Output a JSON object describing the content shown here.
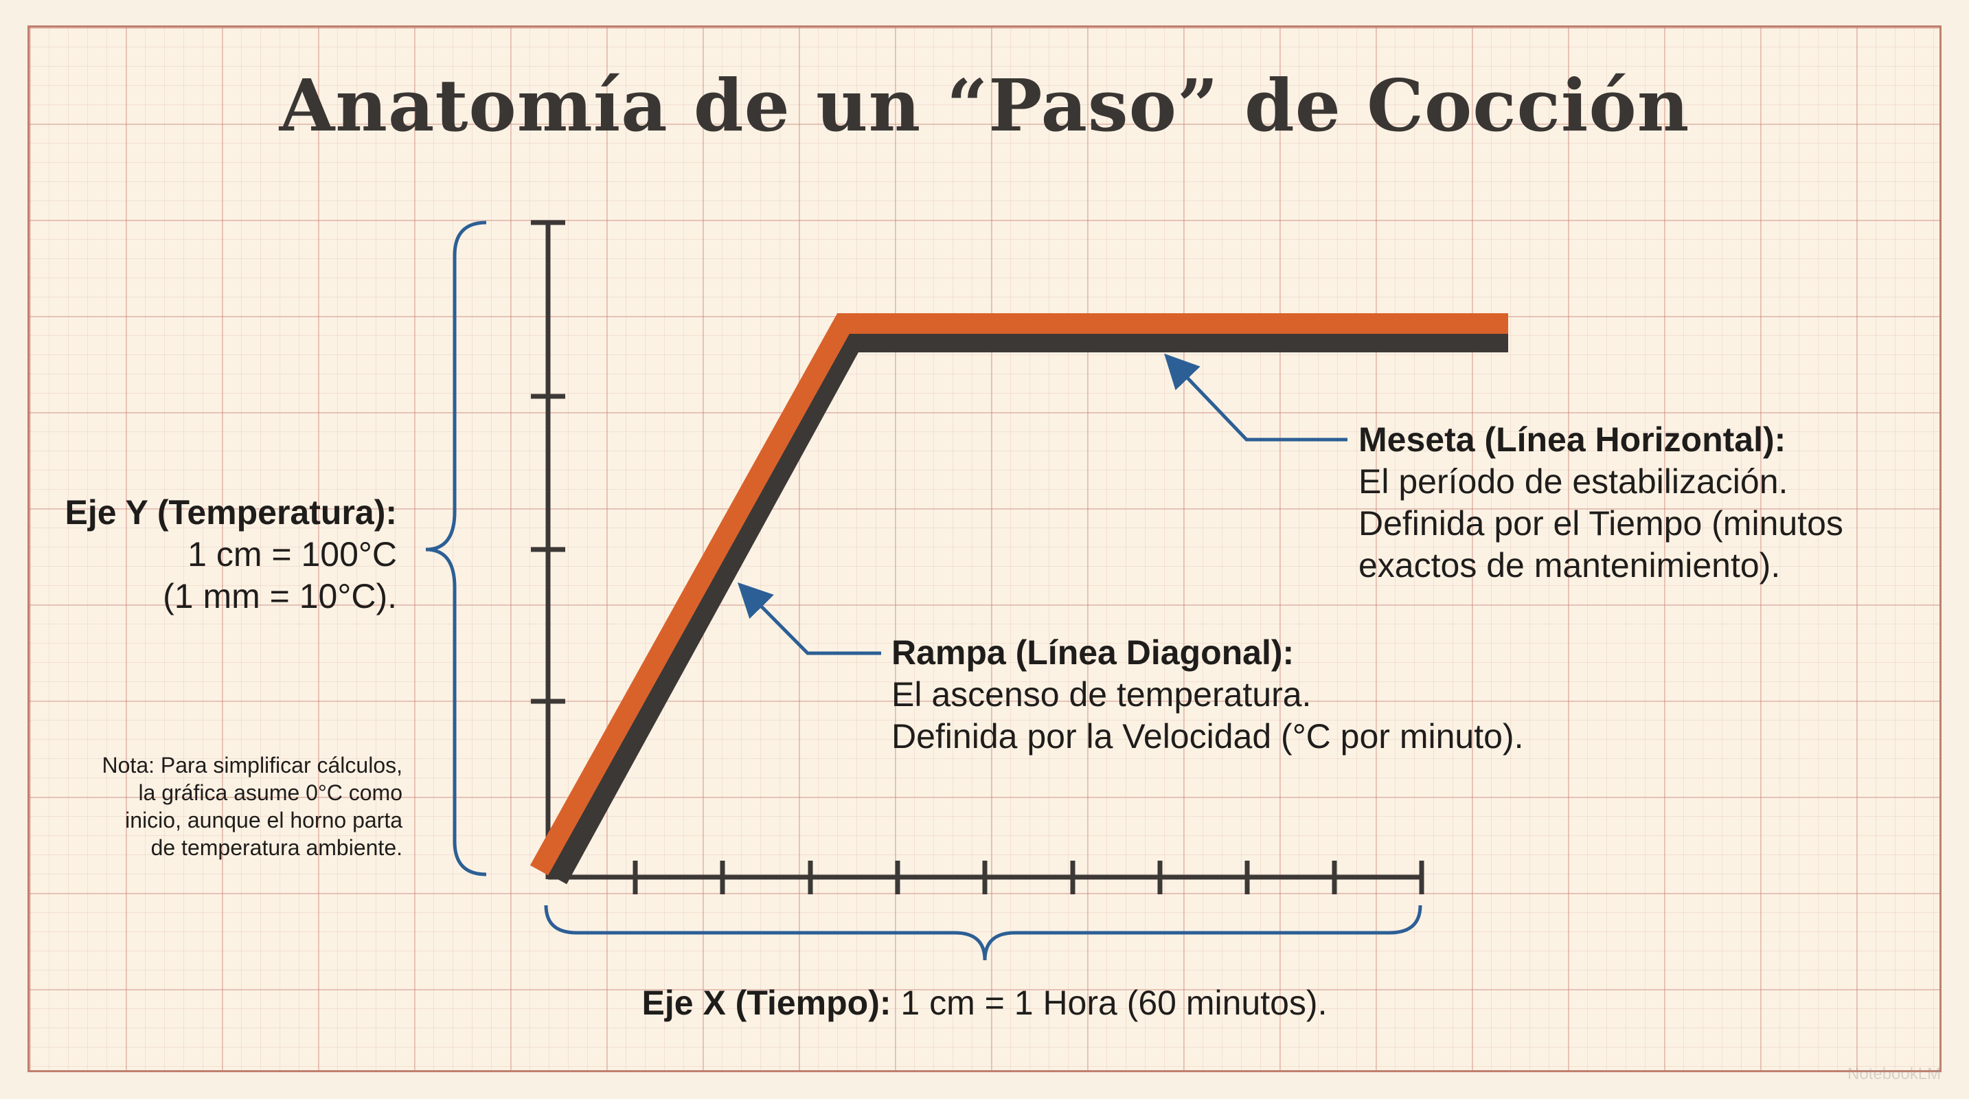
{
  "title": "Anatomía de un “Paso” de Cocción",
  "y_axis": {
    "label": "Eje Y (Temperatura):",
    "scale_cm": "1 cm = 100°C",
    "scale_mm": "(1 mm = 10°C)."
  },
  "note": {
    "lines": [
      "Nota: Para simplificar cálculos,",
      "la gráfica asume 0°C como",
      "inicio, aunque el horno parta",
      "de temperatura ambiente."
    ]
  },
  "ramp": {
    "label": "Rampa (Línea Diagonal):",
    "line1": "El ascenso de temperatura.",
    "line2": "Definida por la Velocidad (°C por minuto)."
  },
  "plateau": {
    "label": "Meseta (Línea Horizontal):",
    "line1": "El período de estabilización.",
    "line2": "Definida por el Tiempo (minutos",
    "line3": "exactos de mantenimiento)."
  },
  "x_axis": {
    "label": "Eje X (Tiempo):",
    "scale": " 1 cm = 1 Hora (60 minutos)."
  },
  "watermark": "NotebookLM",
  "colors": {
    "orange_line": "#d9622b",
    "shadow_line": "#3b3836",
    "axis": "#3b3836",
    "brace": "#2c5f95",
    "arrow": "#2c5f95",
    "text": "#1f1d1b",
    "grid": "#c47668"
  },
  "icons": {
    "arrow_ramp": "arrow-up-left",
    "arrow_plateau": "arrow-up-left"
  }
}
